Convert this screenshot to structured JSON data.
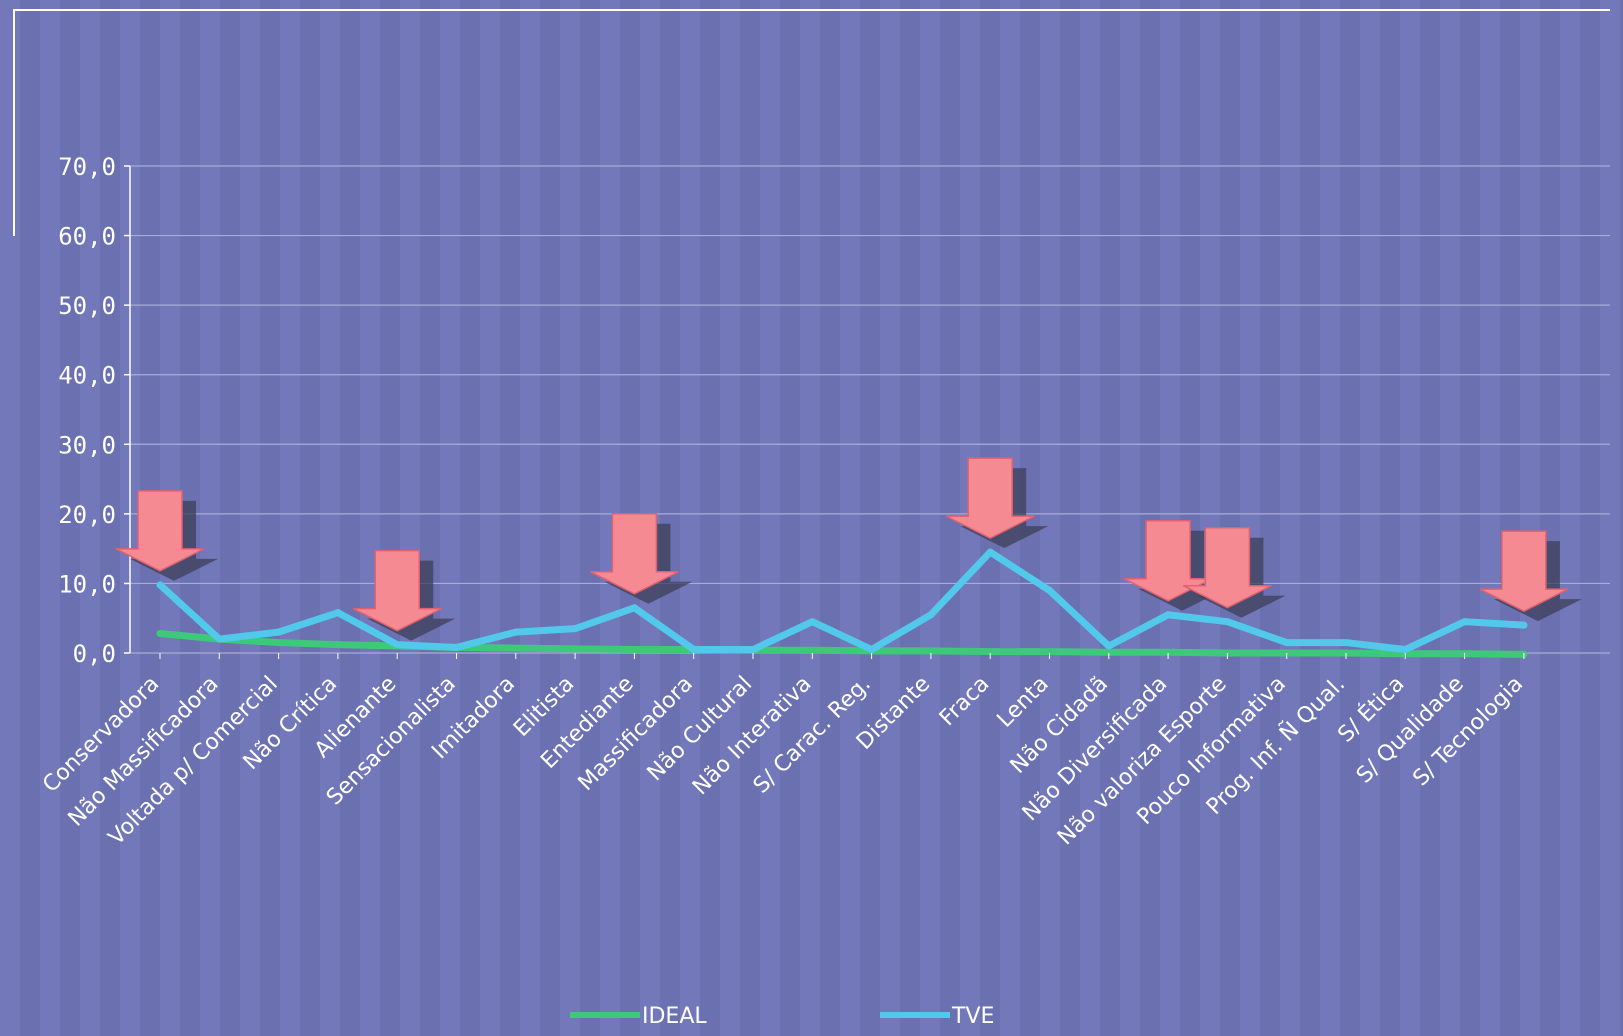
{
  "chart_data": {
    "type": "line",
    "categories": [
      "Conservadora",
      "Não Massificadora",
      "Voltada p/ Comercial",
      "Não Crítica",
      "Alienante",
      "Sensacionalista",
      "Imitadora",
      "Elitista",
      "Entediante",
      "Massificadora",
      "Não Cultural",
      "Não Interativa",
      "S/ Carac. Reg.",
      "Distante",
      "Fraca",
      "Lenta",
      "Não Cidadã",
      "Não Diversificada",
      "Não valoriza Esporte",
      "Pouco Informativa",
      "Prog. Inf. Ñ Qual.",
      "S/ Ética",
      "S/ Qualidade",
      "S/ Tecnologia"
    ],
    "series": [
      {
        "name": "IDEAL",
        "color": "#3ec97a",
        "values": [
          2.8,
          2.0,
          1.5,
          1.2,
          1.0,
          0.8,
          0.7,
          0.6,
          0.5,
          0.5,
          0.4,
          0.4,
          0.3,
          0.3,
          0.2,
          0.2,
          0.1,
          0.1,
          0.0,
          0.0,
          0.0,
          -0.1,
          -0.1,
          -0.2
        ]
      },
      {
        "name": "TVE",
        "color": "#52c8ea",
        "values": [
          9.8,
          2.0,
          3.0,
          5.8,
          1.2,
          0.8,
          3.0,
          3.5,
          6.5,
          0.5,
          0.5,
          4.5,
          0.5,
          5.5,
          14.5,
          9.0,
          1.0,
          5.5,
          4.5,
          1.5,
          1.5,
          0.5,
          4.5,
          4.0
        ]
      }
    ],
    "y_ticks": [
      "70,0",
      "60,0",
      "50,0",
      "40,0",
      "30,0",
      "20,0",
      "10,0",
      "0,0"
    ],
    "ylim": [
      0,
      70
    ],
    "grid": true,
    "legend_position": "bottom",
    "highlighted_categories": [
      "Conservadora",
      "Alienante",
      "Entediante",
      "Fraca",
      "Não Diversificada",
      "Não valoriza Esporte",
      "S/ Tecnologia"
    ],
    "marker_icon": "down-arrow-icon",
    "marker_color": "#f58a92"
  }
}
